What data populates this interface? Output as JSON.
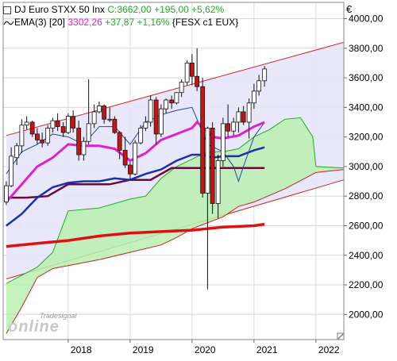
{
  "header": {
    "instrument": "DJ Euro STXX 50 Inx",
    "quote": "C:3662,00 +195,00 +5,62%",
    "quote_color": "#22aa22",
    "indicator_name": "EMA(3) [20]",
    "indicator_value": "3302,26",
    "indicator_change": "+37,87 +1,16%",
    "ref_symbol": "{FESX c1 EUX}",
    "toggle_icon": "checkbox-icon",
    "ema_icon": "wave-icon"
  },
  "currency_label": "€",
  "watermark": {
    "top": "Tradesignal",
    "main": "online"
  },
  "colors": {
    "background": "#ffffff",
    "plot_border": "#888888",
    "grid": "#d8d8d8",
    "channel_fill": "#e6e6fa",
    "channel_line": "#cc2222",
    "cloud_fill": "#b8f0b0",
    "cloud_line": "#22aa22",
    "candle_up": "#ffffff",
    "candle_down": "#cc1111",
    "ma_fast": "#e020d0",
    "ma_mid": "#1a2fb0",
    "ma_slow": "#6b0a3a",
    "ref_line": "#dd1111",
    "bb_line": "#2244aa"
  },
  "chart_data": {
    "type": "candlestick",
    "title": "DJ Euro STXX 50 Inx",
    "x_tick_labels": [
      "2018",
      "2019",
      "2020",
      "2021",
      "2022"
    ],
    "y_tick_labels": [
      "2000,00",
      "2200,00",
      "2400,00",
      "2600,00",
      "2800,00",
      "3000,00",
      "3200,00",
      "3400,00",
      "3600,00",
      "3800,00",
      "4000,00"
    ],
    "ylim": [
      1830,
      4110
    ],
    "x_range": [
      2016.95,
      2022.45
    ],
    "grid": true,
    "candles": [
      {
        "t": 2017.0,
        "o": 2760,
        "h": 2900,
        "l": 2740,
        "c": 2870
      },
      {
        "t": 2017.08,
        "o": 2870,
        "h": 3130,
        "l": 2860,
        "c": 3070
      },
      {
        "t": 2017.17,
        "o": 3060,
        "h": 3160,
        "l": 3010,
        "c": 3140
      },
      {
        "t": 2017.25,
        "o": 3140,
        "h": 3320,
        "l": 3090,
        "c": 3280
      },
      {
        "t": 2017.33,
        "o": 3280,
        "h": 3340,
        "l": 3250,
        "c": 3300
      },
      {
        "t": 2017.42,
        "o": 3300,
        "h": 3310,
        "l": 3200,
        "c": 3220
      },
      {
        "t": 2017.5,
        "o": 3220,
        "h": 3260,
        "l": 3150,
        "c": 3180
      },
      {
        "t": 2017.58,
        "o": 3180,
        "h": 3230,
        "l": 3130,
        "c": 3160
      },
      {
        "t": 2017.67,
        "o": 3160,
        "h": 3280,
        "l": 3140,
        "c": 3260
      },
      {
        "t": 2017.75,
        "o": 3260,
        "h": 3330,
        "l": 3230,
        "c": 3310
      },
      {
        "t": 2017.83,
        "o": 3310,
        "h": 3360,
        "l": 3240,
        "c": 3270
      },
      {
        "t": 2017.92,
        "o": 3270,
        "h": 3300,
        "l": 3200,
        "c": 3230
      },
      {
        "t": 2018.0,
        "o": 3230,
        "h": 3360,
        "l": 3220,
        "c": 3340
      },
      {
        "t": 2018.08,
        "o": 3340,
        "h": 3380,
        "l": 3230,
        "c": 3260
      },
      {
        "t": 2018.17,
        "o": 3260,
        "h": 3310,
        "l": 3040,
        "c": 3080
      },
      {
        "t": 2018.25,
        "o": 3080,
        "h": 3200,
        "l": 3040,
        "c": 3170
      },
      {
        "t": 2018.33,
        "o": 3170,
        "h": 3590,
        "l": 3150,
        "c": 3290
      },
      {
        "t": 2018.42,
        "o": 3290,
        "h": 3420,
        "l": 3260,
        "c": 3370
      },
      {
        "t": 2018.5,
        "o": 3370,
        "h": 3440,
        "l": 3360,
        "c": 3410
      },
      {
        "t": 2018.58,
        "o": 3410,
        "h": 3420,
        "l": 3290,
        "c": 3320
      },
      {
        "t": 2018.67,
        "o": 3320,
        "h": 3400,
        "l": 3300,
        "c": 3320
      },
      {
        "t": 2018.75,
        "o": 3320,
        "h": 3340,
        "l": 3220,
        "c": 3230
      },
      {
        "t": 2018.83,
        "o": 3230,
        "h": 3240,
        "l": 3050,
        "c": 3110
      },
      {
        "t": 2018.92,
        "o": 3110,
        "h": 3200,
        "l": 2990,
        "c": 3010
      },
      {
        "t": 2019.0,
        "o": 3010,
        "h": 3030,
        "l": 2910,
        "c": 2950
      },
      {
        "t": 2019.08,
        "o": 2950,
        "h": 3180,
        "l": 2940,
        "c": 3160
      },
      {
        "t": 2019.17,
        "o": 3160,
        "h": 3280,
        "l": 3150,
        "c": 3260
      },
      {
        "t": 2019.25,
        "o": 3260,
        "h": 3340,
        "l": 3240,
        "c": 3300
      },
      {
        "t": 2019.33,
        "o": 3300,
        "h": 3480,
        "l": 3270,
        "c": 3450
      },
      {
        "t": 2019.42,
        "o": 3450,
        "h": 3470,
        "l": 3150,
        "c": 3220
      },
      {
        "t": 2019.5,
        "o": 3220,
        "h": 3420,
        "l": 3200,
        "c": 3390
      },
      {
        "t": 2019.58,
        "o": 3390,
        "h": 3460,
        "l": 3360,
        "c": 3450
      },
      {
        "t": 2019.67,
        "o": 3450,
        "h": 3480,
        "l": 3390,
        "c": 3430
      },
      {
        "t": 2019.75,
        "o": 3430,
        "h": 3500,
        "l": 3420,
        "c": 3500
      },
      {
        "t": 2019.83,
        "o": 3500,
        "h": 3590,
        "l": 3470,
        "c": 3570
      },
      {
        "t": 2019.92,
        "o": 3570,
        "h": 3720,
        "l": 3550,
        "c": 3700
      },
      {
        "t": 2020.0,
        "o": 3700,
        "h": 3760,
        "l": 3550,
        "c": 3610
      },
      {
        "t": 2020.08,
        "o": 3610,
        "h": 3800,
        "l": 3510,
        "c": 3540
      },
      {
        "t": 2020.17,
        "o": 3540,
        "h": 3600,
        "l": 2790,
        "c": 2820
      },
      {
        "t": 2020.25,
        "o": 2820,
        "h": 3270,
        "l": 2170,
        "c": 3260
      },
      {
        "t": 2020.33,
        "o": 3260,
        "h": 3300,
        "l": 2680,
        "c": 2750
      },
      {
        "t": 2020.42,
        "o": 2750,
        "h": 3080,
        "l": 2650,
        "c": 3040
      },
      {
        "t": 2020.5,
        "o": 3040,
        "h": 3330,
        "l": 3000,
        "c": 3290
      },
      {
        "t": 2020.58,
        "o": 3290,
        "h": 3420,
        "l": 3200,
        "c": 3240
      },
      {
        "t": 2020.67,
        "o": 3240,
        "h": 3330,
        "l": 3210,
        "c": 3300
      },
      {
        "t": 2020.75,
        "o": 3300,
        "h": 3400,
        "l": 3230,
        "c": 3370
      },
      {
        "t": 2020.83,
        "o": 3370,
        "h": 3410,
        "l": 3280,
        "c": 3300
      },
      {
        "t": 2020.92,
        "o": 3300,
        "h": 3460,
        "l": 3190,
        "c": 3430
      },
      {
        "t": 2021.0,
        "o": 3430,
        "h": 3560,
        "l": 3390,
        "c": 3510
      },
      {
        "t": 2021.08,
        "o": 3510,
        "h": 3620,
        "l": 3480,
        "c": 3580
      },
      {
        "t": 2021.17,
        "o": 3580,
        "h": 3680,
        "l": 3540,
        "c": 3660
      }
    ],
    "ma_fast": [
      [
        2017.0,
        2760
      ],
      [
        2017.25,
        2880
      ],
      [
        2017.5,
        3000
      ],
      [
        2017.75,
        3060
      ],
      [
        2018.0,
        3150
      ],
      [
        2018.25,
        3140
      ],
      [
        2018.5,
        3140
      ],
      [
        2018.75,
        3120
      ],
      [
        2019.0,
        3040
      ],
      [
        2019.25,
        3090
      ],
      [
        2019.5,
        3180
      ],
      [
        2019.75,
        3220
      ],
      [
        2020.0,
        3260
      ],
      [
        2020.08,
        3300
      ],
      [
        2020.17,
        3270
      ],
      [
        2020.33,
        3200
      ],
      [
        2020.5,
        3190
      ],
      [
        2020.75,
        3210
      ],
      [
        2021.0,
        3270
      ],
      [
        2021.17,
        3300
      ]
    ],
    "ma_mid": [
      [
        2017.0,
        2600
      ],
      [
        2017.25,
        2680
      ],
      [
        2017.5,
        2790
      ],
      [
        2017.75,
        2860
      ],
      [
        2018.0,
        2890
      ],
      [
        2018.25,
        2900
      ],
      [
        2018.5,
        2900
      ],
      [
        2018.75,
        2920
      ],
      [
        2019.0,
        2910
      ],
      [
        2019.25,
        2950
      ],
      [
        2019.5,
        2980
      ],
      [
        2019.75,
        3040
      ],
      [
        2020.0,
        3080
      ],
      [
        2020.17,
        3080
      ],
      [
        2020.33,
        3060
      ],
      [
        2020.5,
        3070
      ],
      [
        2020.75,
        3070
      ],
      [
        2021.0,
        3110
      ],
      [
        2021.17,
        3130
      ]
    ],
    "ma_slow": [
      [
        2017.0,
        2790
      ],
      [
        2017.33,
        2790
      ],
      [
        2017.67,
        2800
      ],
      [
        2018.0,
        2880
      ],
      [
        2018.33,
        2880
      ],
      [
        2018.67,
        2880
      ],
      [
        2019.0,
        2910
      ],
      [
        2019.33,
        2910
      ],
      [
        2019.67,
        2990
      ],
      [
        2020.0,
        2990
      ],
      [
        2020.33,
        2990
      ],
      [
        2020.67,
        2990
      ],
      [
        2021.0,
        2990
      ],
      [
        2021.17,
        2990
      ]
    ],
    "bb_line": [
      [
        2017.0,
        2950
      ],
      [
        2017.25,
        3100
      ],
      [
        2017.5,
        3150
      ],
      [
        2017.75,
        3220
      ],
      [
        2018.0,
        3200
      ],
      [
        2018.25,
        3150
      ],
      [
        2018.5,
        3270
      ],
      [
        2018.75,
        3270
      ],
      [
        2019.0,
        3150
      ],
      [
        2019.25,
        3300
      ],
      [
        2019.5,
        3350
      ],
      [
        2019.75,
        3380
      ],
      [
        2020.0,
        3400
      ],
      [
        2020.25,
        3150
      ],
      [
        2020.5,
        3100
      ],
      [
        2020.67,
        3000
      ],
      [
        2020.75,
        2900
      ],
      [
        2020.83,
        3000
      ],
      [
        2021.0,
        3200
      ],
      [
        2021.17,
        3300
      ]
    ],
    "ref_line": [
      [
        2017.0,
        2460
      ],
      [
        2017.5,
        2480
      ],
      [
        2018.0,
        2500
      ],
      [
        2018.5,
        2530
      ],
      [
        2019.0,
        2550
      ],
      [
        2019.5,
        2560
      ],
      [
        2020.0,
        2570
      ],
      [
        2020.5,
        2590
      ],
      [
        2021.0,
        2600
      ],
      [
        2021.17,
        2610
      ]
    ],
    "channel_upper": [
      [
        2017.0,
        3210
      ],
      [
        2022.45,
        3840
      ]
    ],
    "channel_lower": [
      [
        2017.0,
        2240
      ],
      [
        2022.45,
        2910
      ]
    ],
    "cloud_upper": [
      [
        2017.0,
        2210
      ],
      [
        2017.5,
        2320
      ],
      [
        2017.75,
        2420
      ],
      [
        2018.0,
        2700
      ],
      [
        2018.5,
        2720
      ],
      [
        2019.0,
        2780
      ],
      [
        2019.25,
        2800
      ],
      [
        2019.5,
        2920
      ],
      [
        2019.75,
        3000
      ],
      [
        2020.0,
        3050
      ],
      [
        2020.25,
        3100
      ],
      [
        2020.5,
        3100
      ],
      [
        2020.75,
        3120
      ],
      [
        2021.0,
        3200
      ],
      [
        2021.25,
        3250
      ],
      [
        2021.5,
        3320
      ],
      [
        2021.75,
        3330
      ],
      [
        2021.95,
        3200
      ],
      [
        2022.0,
        3000
      ],
      [
        2022.45,
        2990
      ]
    ],
    "cloud_lower": [
      [
        2017.0,
        1870
      ],
      [
        2017.25,
        2050
      ],
      [
        2017.5,
        2250
      ],
      [
        2017.75,
        2310
      ],
      [
        2018.0,
        2330
      ],
      [
        2018.5,
        2370
      ],
      [
        2019.0,
        2420
      ],
      [
        2019.5,
        2470
      ],
      [
        2019.75,
        2520
      ],
      [
        2020.0,
        2580
      ],
      [
        2020.5,
        2660
      ],
      [
        2020.75,
        2730
      ],
      [
        2021.0,
        2760
      ],
      [
        2021.5,
        2850
      ],
      [
        2022.0,
        2960
      ],
      [
        2022.45,
        2980
      ]
    ]
  }
}
